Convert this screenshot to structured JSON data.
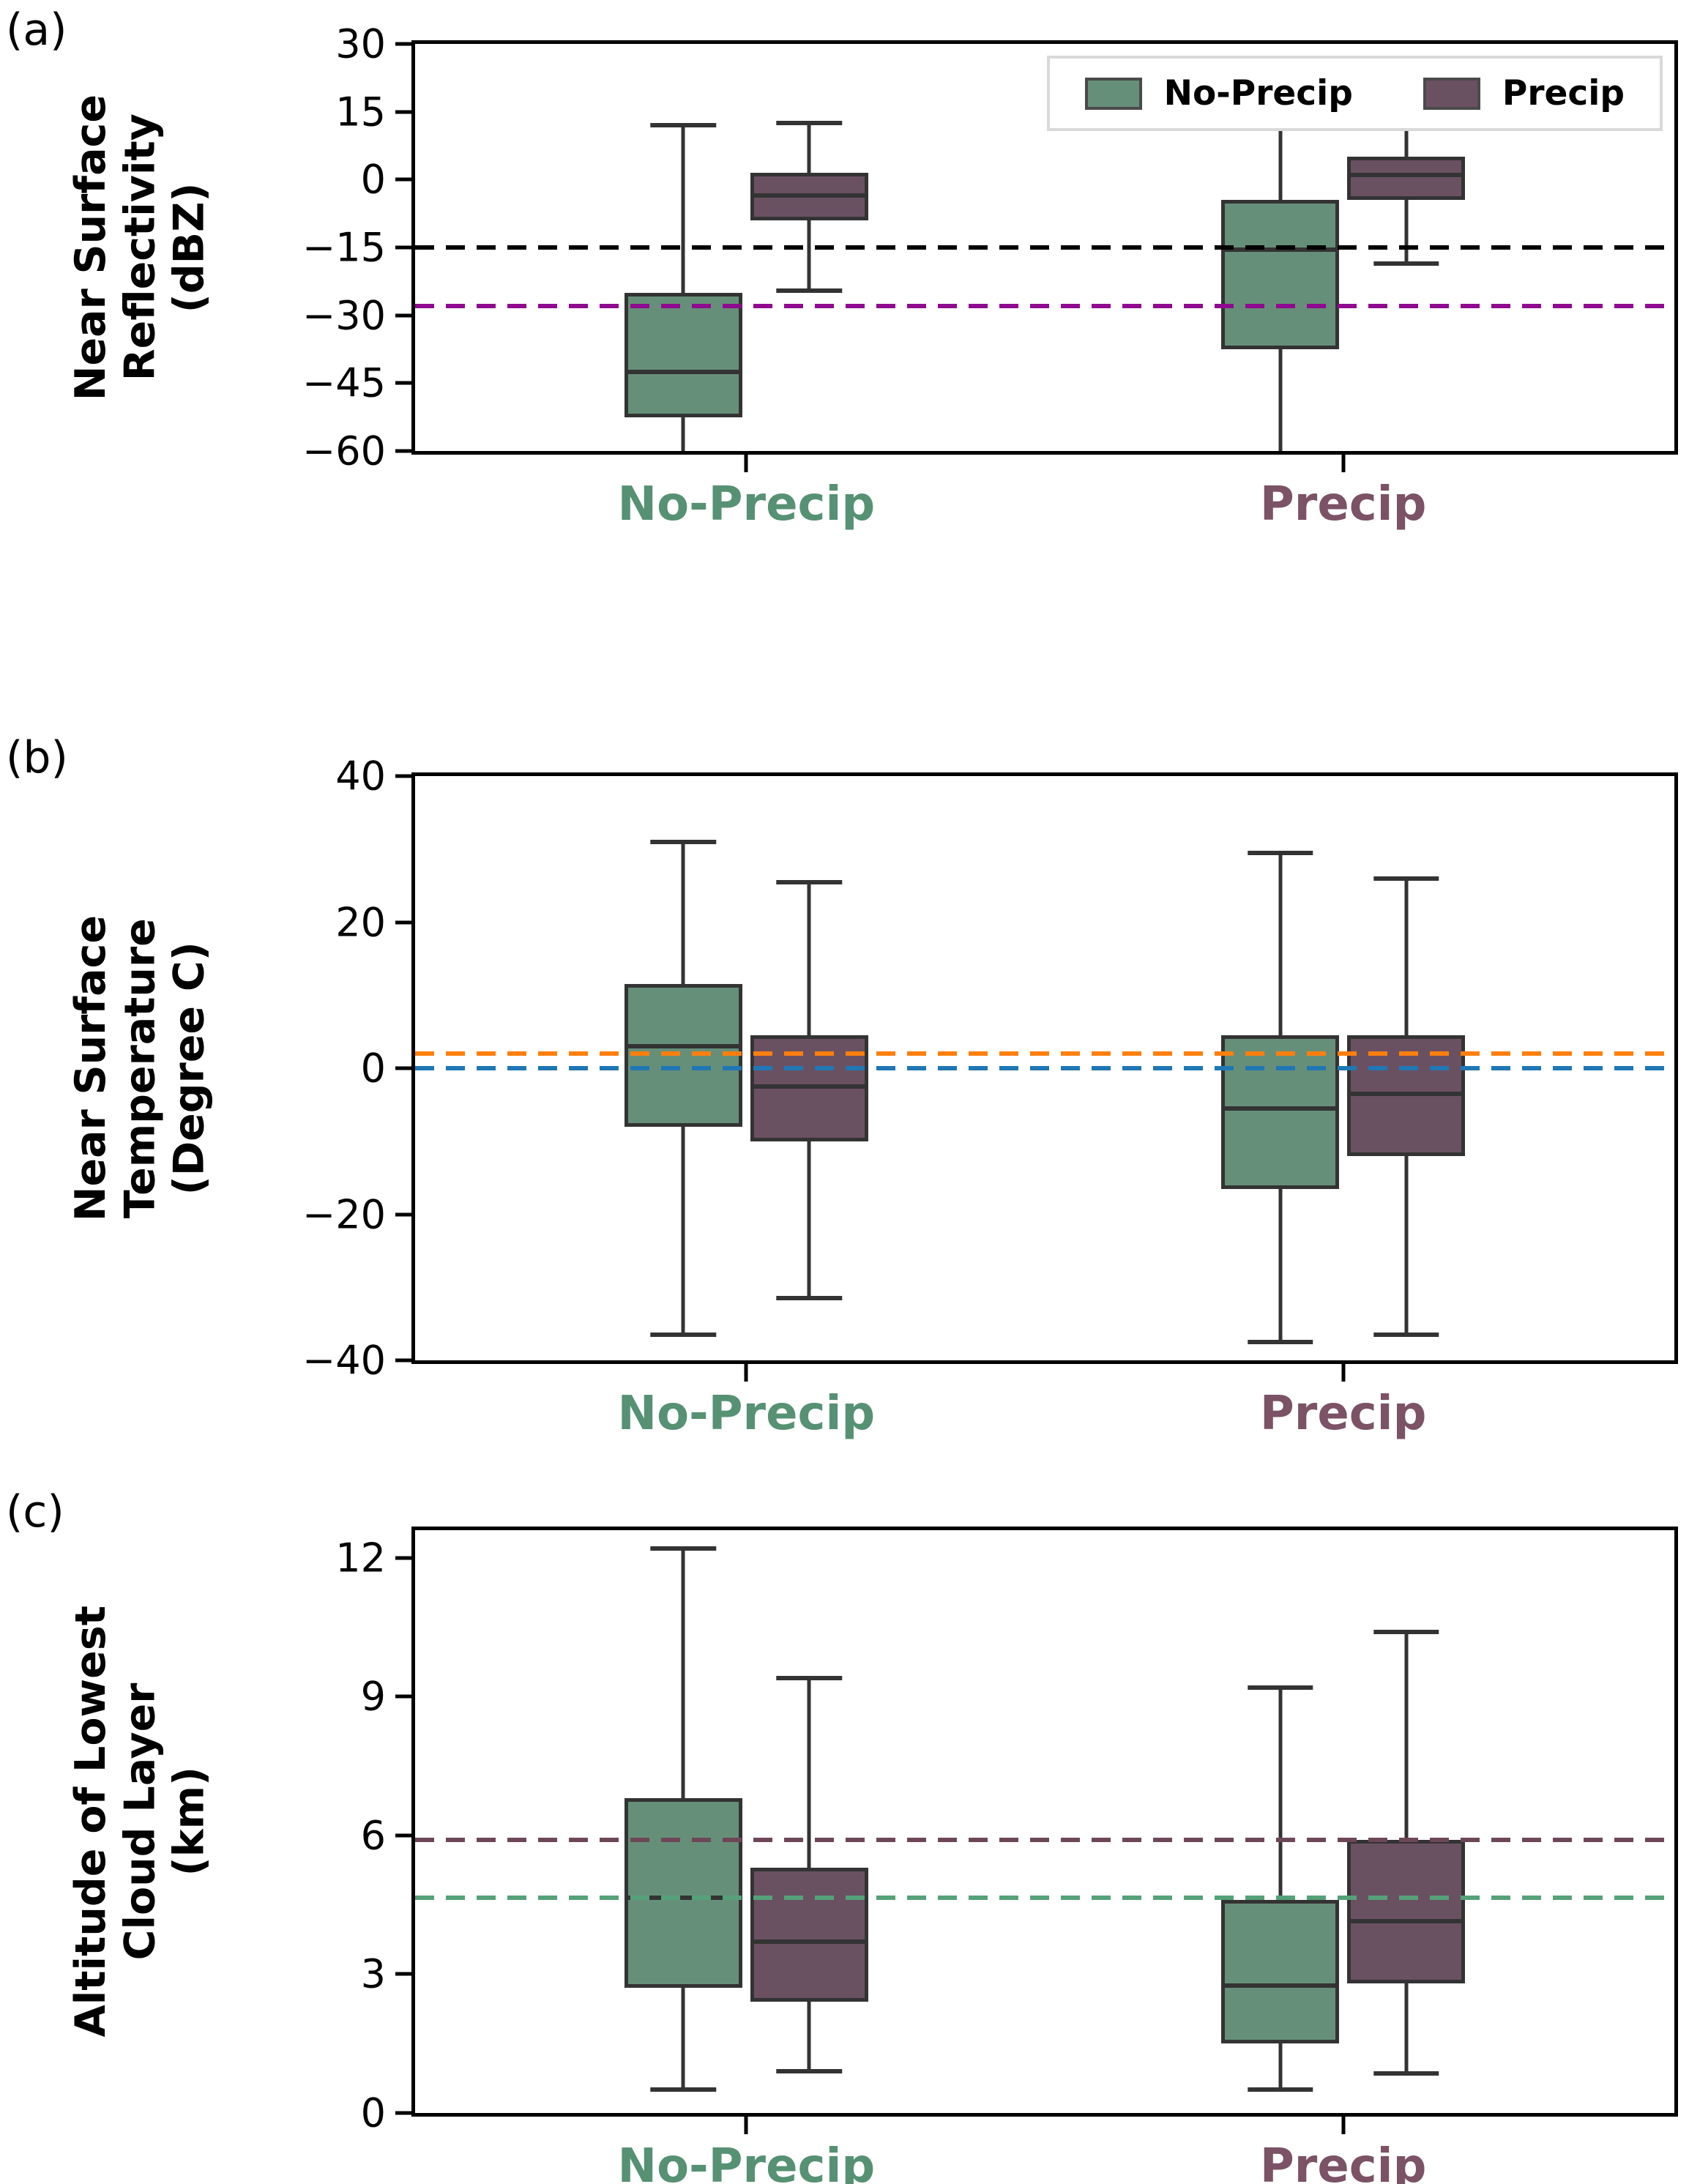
{
  "chart_data": [
    {
      "type": "box",
      "panel_letter": "(a)",
      "ylabel": "Near Surface Reflectivity (dBZ)",
      "ylabel_lines": [
        "Near Surface",
        "Reflectivity",
        "(dBZ)"
      ],
      "ylim": [
        -60,
        30
      ],
      "yticks": [
        30,
        15,
        0,
        -15,
        -30,
        -45,
        -60
      ],
      "categories": [
        "No-Precip",
        "Precip"
      ],
      "category_colors": [
        "#569174",
        "#7b5266"
      ],
      "series": [
        {
          "name": "No-Precip",
          "color": "#668f79",
          "boxes": [
            {
              "whislo": -60,
              "q1": -52.5,
              "med": -42.5,
              "q3": -25,
              "whishi": 12,
              "cap_low": false
            },
            {
              "whislo": -60,
              "q1": -37.5,
              "med": -15.5,
              "q3": -4.5,
              "whishi": 12.5,
              "cap_low": false
            }
          ]
        },
        {
          "name": "Precip",
          "color": "#6a5162",
          "boxes": [
            {
              "whislo": -24.5,
              "q1": -9,
              "med": -3.5,
              "q3": 1.5,
              "whishi": 12.5
            },
            {
              "whislo": -18.5,
              "q1": -4.5,
              "med": 1,
              "q3": 5,
              "whishi": 15
            }
          ]
        }
      ],
      "ref_lines": [
        {
          "y": -15,
          "color": "#000000",
          "style": "dashed"
        },
        {
          "y": -28,
          "color": "#8f0a8f",
          "style": "dashed"
        }
      ],
      "legend": {
        "show": true,
        "position": "upper right"
      }
    },
    {
      "type": "box",
      "panel_letter": "(b)",
      "ylabel": "Near Surface Temperature (Degree C)",
      "ylabel_lines": [
        "Near Surface",
        "Temperature",
        "(Degree C)"
      ],
      "ylim": [
        -40,
        40
      ],
      "yticks": [
        40,
        20,
        0,
        -20,
        -40
      ],
      "categories": [
        "No-Precip",
        "Precip"
      ],
      "category_colors": [
        "#569174",
        "#7b5266"
      ],
      "series": [
        {
          "name": "No-Precip",
          "color": "#668f79",
          "boxes": [
            {
              "whislo": -36.5,
              "q1": -8,
              "med": 3,
              "q3": 11.5,
              "whishi": 31
            },
            {
              "whislo": -37.5,
              "q1": -16.5,
              "med": -5.5,
              "q3": 4.5,
              "whishi": 29.5
            }
          ]
        },
        {
          "name": "Precip",
          "color": "#6a5162",
          "boxes": [
            {
              "whislo": -31.5,
              "q1": -10,
              "med": -2.5,
              "q3": 4.5,
              "whishi": 25.5
            },
            {
              "whislo": -36.5,
              "q1": -12,
              "med": -3.5,
              "q3": 4.5,
              "whishi": 26
            }
          ]
        }
      ],
      "ref_lines": [
        {
          "y": 2,
          "color": "#ff7f0e",
          "style": "dashed"
        },
        {
          "y": 0,
          "color": "#1f77b4",
          "style": "dashed"
        }
      ],
      "legend": {
        "show": false
      }
    },
    {
      "type": "box",
      "panel_letter": "(c)",
      "ylabel": "Altitude of Lowest Cloud Layer (km)",
      "ylabel_lines": [
        "Altitude of Lowest",
        "Cloud Layer",
        "(km)"
      ],
      "ylim": [
        0,
        12.6
      ],
      "yticks": [
        12,
        9,
        6,
        3,
        0
      ],
      "categories": [
        "No-Precip",
        "Precip"
      ],
      "category_colors": [
        "#569174",
        "#7b5266"
      ],
      "series": [
        {
          "name": "No-Precip",
          "color": "#668f79",
          "boxes": [
            {
              "whislo": 0.5,
              "q1": 2.7,
              "med": 4.65,
              "q3": 6.8,
              "whishi": 12.2
            },
            {
              "whislo": 0.5,
              "q1": 1.5,
              "med": 2.75,
              "q3": 4.6,
              "whishi": 9.2
            }
          ]
        },
        {
          "name": "Precip",
          "color": "#6a5162",
          "boxes": [
            {
              "whislo": 0.9,
              "q1": 2.4,
              "med": 3.7,
              "q3": 5.3,
              "whishi": 9.4
            },
            {
              "whislo": 0.85,
              "q1": 2.8,
              "med": 4.15,
              "q3": 5.9,
              "whishi": 10.4
            }
          ]
        }
      ],
      "ref_lines": [
        {
          "y": 5.9,
          "color": "#6d4758",
          "style": "dashed"
        },
        {
          "y": 4.65,
          "color": "#55a179",
          "style": "dashed"
        }
      ],
      "legend": {
        "show": false
      }
    }
  ],
  "styles": {
    "box_edge_color": "#333333",
    "legend_labels": [
      "No-Precip",
      "Precip"
    ]
  }
}
